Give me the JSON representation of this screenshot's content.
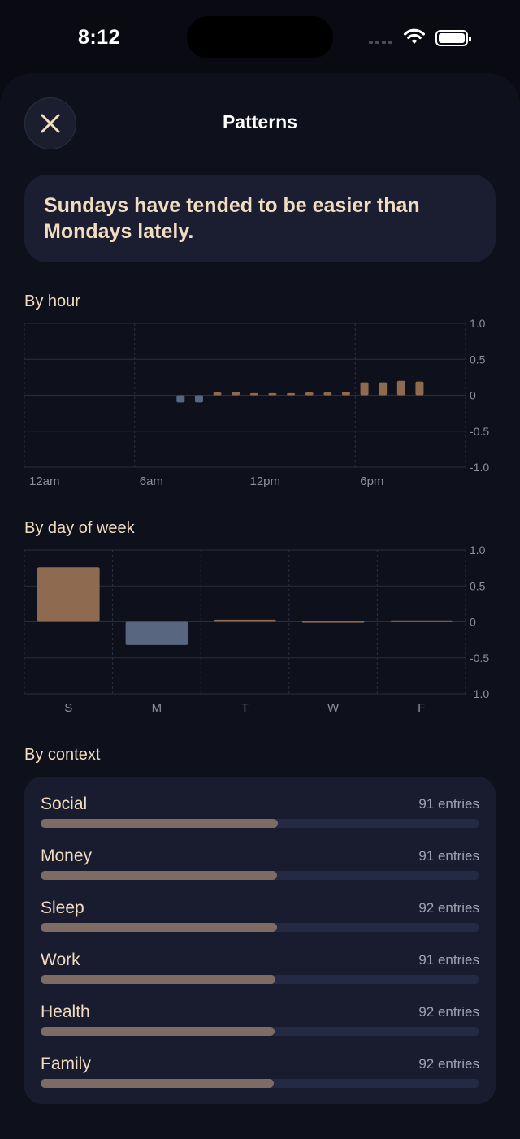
{
  "status": {
    "time": "8:12"
  },
  "header": {
    "title": "Patterns"
  },
  "insight": {
    "text": "Sundays have tended to be easier than Mondays lately."
  },
  "sections": {
    "by_hour": "By hour",
    "by_day": "By day of week",
    "by_context": "By context"
  },
  "colors": {
    "positive": "#8e6a50",
    "negative": "#58677f",
    "accent_text": "#f2dcc0"
  },
  "chart_data": [
    {
      "type": "bar",
      "title": "By hour",
      "ylim": [
        -1.0,
        1.0
      ],
      "yticks": [
        "1.0",
        "0.5",
        "0",
        "-0.5",
        "-1.0"
      ],
      "xtick_labels": [
        "12am",
        "6am",
        "12pm",
        "6pm"
      ],
      "x": [
        0,
        1,
        2,
        3,
        4,
        5,
        6,
        7,
        8,
        9,
        10,
        11,
        12,
        13,
        14,
        15,
        16,
        17,
        18,
        19,
        20,
        21,
        22,
        23
      ],
      "values": [
        null,
        null,
        null,
        null,
        null,
        null,
        null,
        null,
        -0.1,
        -0.1,
        0.04,
        0.05,
        0.03,
        0.03,
        0.03,
        0.04,
        0.04,
        0.05,
        0.18,
        0.18,
        0.2,
        0.19,
        null,
        null
      ],
      "grid": true
    },
    {
      "type": "bar",
      "title": "By day of week",
      "ylim": [
        -1.0,
        1.0
      ],
      "yticks": [
        "1.0",
        "0.5",
        "0",
        "-0.5",
        "-1.0"
      ],
      "categories": [
        "S",
        "M",
        "T",
        "W",
        "F"
      ],
      "values": [
        0.76,
        -0.32,
        0.03,
        0.01,
        0.02
      ],
      "grid": true
    }
  ],
  "contexts": [
    {
      "name": "Social",
      "count": "91 entries",
      "level": 0.54
    },
    {
      "name": "Money",
      "count": "91 entries",
      "level": 0.538
    },
    {
      "name": "Sleep",
      "count": "92 entries",
      "level": 0.538
    },
    {
      "name": "Work",
      "count": "91 entries",
      "level": 0.536
    },
    {
      "name": "Health",
      "count": "92 entries",
      "level": 0.534
    },
    {
      "name": "Family",
      "count": "92 entries",
      "level": 0.532
    }
  ]
}
